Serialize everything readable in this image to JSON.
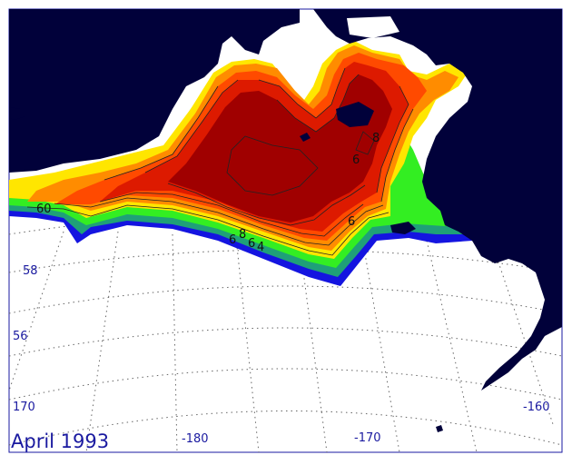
{
  "title": "April 1993",
  "graticule_labels": {
    "lat": [
      "58",
      "56"
    ],
    "lon_left": "170",
    "lon_bottom": [
      "-180",
      "-170"
    ],
    "lon_right": "-160"
  },
  "contour_labels": [
    "60",
    "8",
    "6",
    "6",
    "8",
    "6",
    "6",
    "4"
  ],
  "colors": {
    "land": "#01013a",
    "open_water": "#ffffff",
    "ice_dark_red": "#a00000",
    "ice_red": "#dd1a00",
    "ice_orange_red": "#ff4a00",
    "ice_orange": "#ff8c00",
    "ice_yellow": "#ffe600",
    "ice_green": "#33ee22",
    "ice_teal": "#1fa078",
    "ice_blue": "#1414e0",
    "frame": "#1a1aa0"
  }
}
